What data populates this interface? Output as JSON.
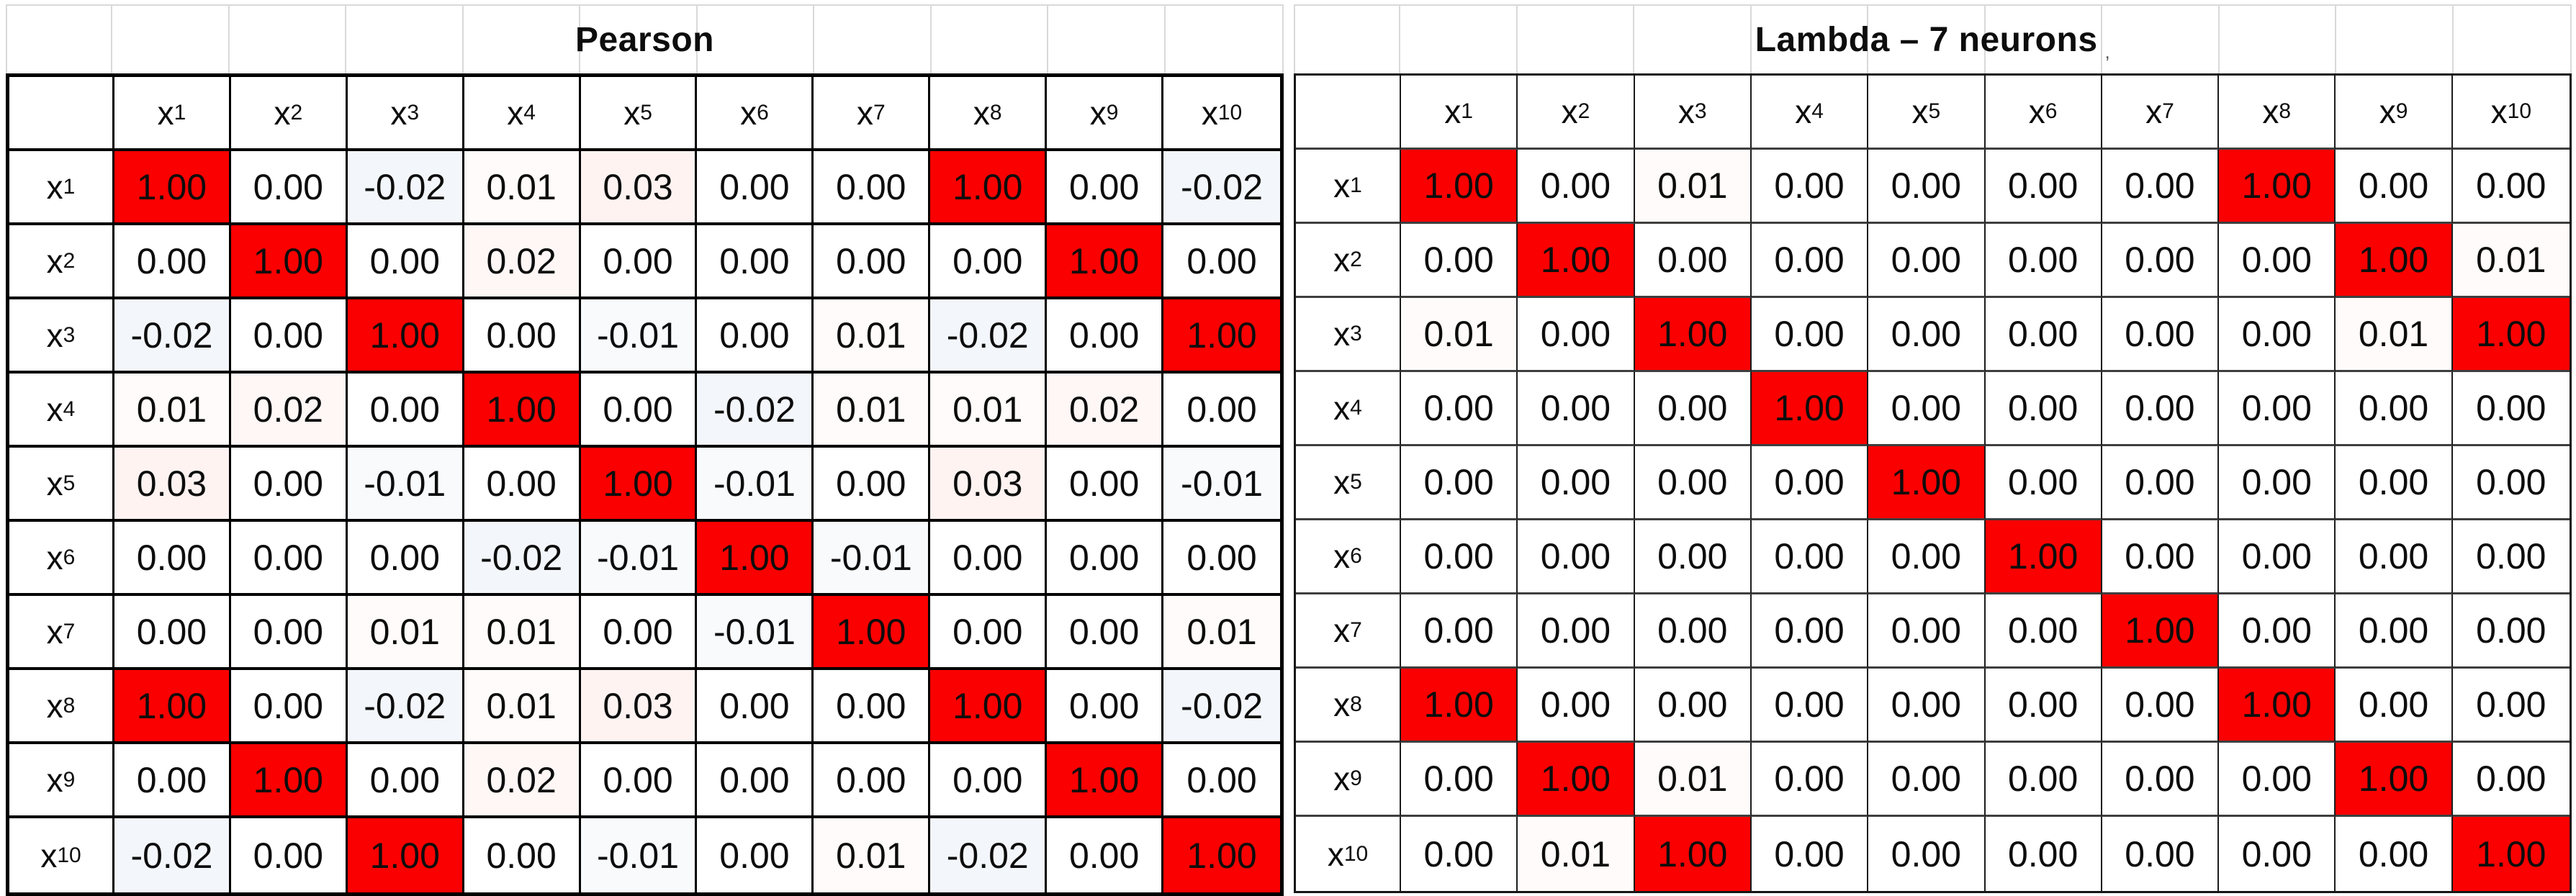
{
  "colors": {
    "diagonal_red": "#FB0000",
    "positive_tint_rgb": "234,72,40",
    "negative_tint_rgb": "104,134,188",
    "grid_black": "#000000",
    "title_separator_gray": "#D9D9D9"
  },
  "chart_data": [
    {
      "type": "heatmap",
      "title": "Pearson",
      "title_mark": "",
      "x_labels": [
        "x1",
        "x2",
        "x3",
        "x4",
        "x5",
        "x6",
        "x7",
        "x8",
        "x9",
        "x10"
      ],
      "y_labels": [
        "x1",
        "x2",
        "x3",
        "x4",
        "x5",
        "x6",
        "x7",
        "x8",
        "x9",
        "x10"
      ],
      "value_format": "2dp",
      "highlight_rule": "cells with value 1.00 filled red",
      "values": [
        [
          1.0,
          0.0,
          -0.02,
          0.01,
          0.03,
          0.0,
          0.0,
          1.0,
          0.0,
          -0.02
        ],
        [
          0.0,
          1.0,
          0.0,
          0.02,
          0.0,
          0.0,
          0.0,
          0.0,
          1.0,
          0.0
        ],
        [
          -0.02,
          0.0,
          1.0,
          0.0,
          -0.01,
          0.0,
          0.01,
          -0.02,
          0.0,
          1.0
        ],
        [
          0.01,
          0.02,
          0.0,
          1.0,
          0.0,
          -0.02,
          0.01,
          0.01,
          0.02,
          0.0
        ],
        [
          0.03,
          0.0,
          -0.01,
          0.0,
          1.0,
          -0.01,
          0.0,
          0.03,
          0.0,
          -0.01
        ],
        [
          0.0,
          0.0,
          0.0,
          -0.02,
          -0.01,
          1.0,
          -0.01,
          0.0,
          0.0,
          0.0
        ],
        [
          0.0,
          0.0,
          0.01,
          0.01,
          0.0,
          -0.01,
          1.0,
          0.0,
          0.0,
          0.01
        ],
        [
          1.0,
          0.0,
          -0.02,
          0.01,
          0.03,
          0.0,
          0.0,
          1.0,
          0.0,
          -0.02
        ],
        [
          0.0,
          1.0,
          0.0,
          0.02,
          0.0,
          0.0,
          0.0,
          0.0,
          1.0,
          0.0
        ],
        [
          -0.02,
          0.0,
          1.0,
          0.0,
          -0.01,
          0.0,
          0.01,
          -0.02,
          0.0,
          1.0
        ]
      ]
    },
    {
      "type": "heatmap",
      "title": "Lambda – 7 neurons",
      "title_mark": ",",
      "x_labels": [
        "x1",
        "x2",
        "x3",
        "x4",
        "x5",
        "x6",
        "x7",
        "x8",
        "x9",
        "x10"
      ],
      "y_labels": [
        "x1",
        "x2",
        "x3",
        "x4",
        "x5",
        "x6",
        "x7",
        "x8",
        "x9",
        "x10"
      ],
      "value_format": "2dp",
      "highlight_rule": "cells with value 1.00 filled red",
      "values": [
        [
          1.0,
          0.0,
          0.01,
          0.0,
          0.0,
          0.0,
          0.0,
          1.0,
          0.0,
          0.0
        ],
        [
          0.0,
          1.0,
          0.0,
          0.0,
          0.0,
          0.0,
          0.0,
          0.0,
          1.0,
          0.01
        ],
        [
          0.01,
          0.0,
          1.0,
          0.0,
          0.0,
          0.0,
          0.0,
          0.0,
          0.01,
          1.0
        ],
        [
          0.0,
          0.0,
          0.0,
          1.0,
          0.0,
          0.0,
          0.0,
          0.0,
          0.0,
          0.0
        ],
        [
          0.0,
          0.0,
          0.0,
          0.0,
          1.0,
          0.0,
          0.0,
          0.0,
          0.0,
          0.0
        ],
        [
          0.0,
          0.0,
          0.0,
          0.0,
          0.0,
          1.0,
          0.0,
          0.0,
          0.0,
          0.0
        ],
        [
          0.0,
          0.0,
          0.0,
          0.0,
          0.0,
          0.0,
          1.0,
          0.0,
          0.0,
          0.0
        ],
        [
          1.0,
          0.0,
          0.0,
          0.0,
          0.0,
          0.0,
          0.0,
          1.0,
          0.0,
          0.0
        ],
        [
          0.0,
          1.0,
          0.01,
          0.0,
          0.0,
          0.0,
          0.0,
          0.0,
          1.0,
          0.0
        ],
        [
          0.0,
          0.01,
          1.0,
          0.0,
          0.0,
          0.0,
          0.0,
          0.0,
          0.0,
          1.0
        ]
      ]
    }
  ]
}
